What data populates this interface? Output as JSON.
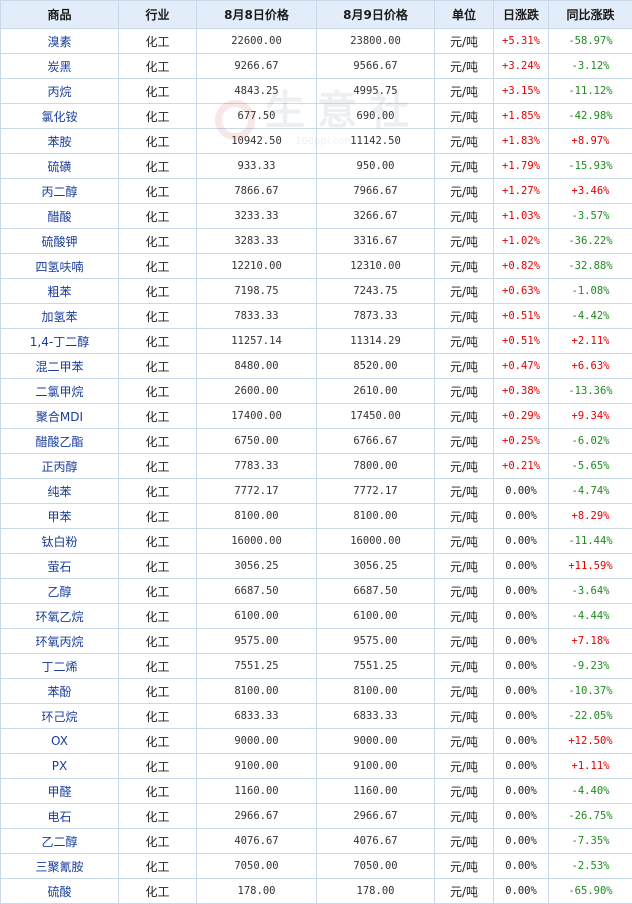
{
  "table": {
    "headers": [
      "商品",
      "行业",
      "8月8日价格",
      "8月9日价格",
      "单位",
      "日涨跌",
      "同比涨跌"
    ],
    "rows": [
      [
        "溴素",
        "化工",
        "22600.00",
        "23800.00",
        "元/吨",
        "+5.31%",
        "-58.97%"
      ],
      [
        "炭黑",
        "化工",
        "9266.67",
        "9566.67",
        "元/吨",
        "+3.24%",
        "-3.12%"
      ],
      [
        "丙烷",
        "化工",
        "4843.25",
        "4995.75",
        "元/吨",
        "+3.15%",
        "-11.12%"
      ],
      [
        "氯化铵",
        "化工",
        "677.50",
        "690.00",
        "元/吨",
        "+1.85%",
        "-42.98%"
      ],
      [
        "苯胺",
        "化工",
        "10942.50",
        "11142.50",
        "元/吨",
        "+1.83%",
        "+8.97%"
      ],
      [
        "硫磺",
        "化工",
        "933.33",
        "950.00",
        "元/吨",
        "+1.79%",
        "-15.93%"
      ],
      [
        "丙二醇",
        "化工",
        "7866.67",
        "7966.67",
        "元/吨",
        "+1.27%",
        "+3.46%"
      ],
      [
        "醋酸",
        "化工",
        "3233.33",
        "3266.67",
        "元/吨",
        "+1.03%",
        "-3.57%"
      ],
      [
        "硫酸钾",
        "化工",
        "3283.33",
        "3316.67",
        "元/吨",
        "+1.02%",
        "-36.22%"
      ],
      [
        "四氢呋喃",
        "化工",
        "12210.00",
        "12310.00",
        "元/吨",
        "+0.82%",
        "-32.88%"
      ],
      [
        "粗苯",
        "化工",
        "7198.75",
        "7243.75",
        "元/吨",
        "+0.63%",
        "-1.08%"
      ],
      [
        "加氢苯",
        "化工",
        "7833.33",
        "7873.33",
        "元/吨",
        "+0.51%",
        "-4.42%"
      ],
      [
        "1,4-丁二醇",
        "化工",
        "11257.14",
        "11314.29",
        "元/吨",
        "+0.51%",
        "+2.11%"
      ],
      [
        "混二甲苯",
        "化工",
        "8480.00",
        "8520.00",
        "元/吨",
        "+0.47%",
        "+6.63%"
      ],
      [
        "二氯甲烷",
        "化工",
        "2600.00",
        "2610.00",
        "元/吨",
        "+0.38%",
        "-13.36%"
      ],
      [
        "聚合MDI",
        "化工",
        "17400.00",
        "17450.00",
        "元/吨",
        "+0.29%",
        "+9.34%"
      ],
      [
        "醋酸乙酯",
        "化工",
        "6750.00",
        "6766.67",
        "元/吨",
        "+0.25%",
        "-6.02%"
      ],
      [
        "正丙醇",
        "化工",
        "7783.33",
        "7800.00",
        "元/吨",
        "+0.21%",
        "-5.65%"
      ],
      [
        "纯苯",
        "化工",
        "7772.17",
        "7772.17",
        "元/吨",
        "0.00%",
        "-4.74%"
      ],
      [
        "甲苯",
        "化工",
        "8100.00",
        "8100.00",
        "元/吨",
        "0.00%",
        "+8.29%"
      ],
      [
        "钛白粉",
        "化工",
        "16000.00",
        "16000.00",
        "元/吨",
        "0.00%",
        "-11.44%"
      ],
      [
        "萤石",
        "化工",
        "3056.25",
        "3056.25",
        "元/吨",
        "0.00%",
        "+11.59%"
      ],
      [
        "乙醇",
        "化工",
        "6687.50",
        "6687.50",
        "元/吨",
        "0.00%",
        "-3.64%"
      ],
      [
        "环氧乙烷",
        "化工",
        "6100.00",
        "6100.00",
        "元/吨",
        "0.00%",
        "-4.44%"
      ],
      [
        "环氧丙烷",
        "化工",
        "9575.00",
        "9575.00",
        "元/吨",
        "0.00%",
        "+7.18%"
      ],
      [
        "丁二烯",
        "化工",
        "7551.25",
        "7551.25",
        "元/吨",
        "0.00%",
        "-9.23%"
      ],
      [
        "苯酚",
        "化工",
        "8100.00",
        "8100.00",
        "元/吨",
        "0.00%",
        "-10.37%"
      ],
      [
        "环己烷",
        "化工",
        "6833.33",
        "6833.33",
        "元/吨",
        "0.00%",
        "-22.05%"
      ],
      [
        "OX",
        "化工",
        "9000.00",
        "9000.00",
        "元/吨",
        "0.00%",
        "+12.50%"
      ],
      [
        "PX",
        "化工",
        "9100.00",
        "9100.00",
        "元/吨",
        "0.00%",
        "+1.11%"
      ],
      [
        "甲醛",
        "化工",
        "1160.00",
        "1160.00",
        "元/吨",
        "0.00%",
        "-4.40%"
      ],
      [
        "电石",
        "化工",
        "2966.67",
        "2966.67",
        "元/吨",
        "0.00%",
        "-26.75%"
      ],
      [
        "乙二醇",
        "化工",
        "4076.67",
        "4076.67",
        "元/吨",
        "0.00%",
        "-7.35%"
      ],
      [
        "三聚氰胺",
        "化工",
        "7050.00",
        "7050.00",
        "元/吨",
        "0.00%",
        "-2.53%"
      ],
      [
        "硫酸",
        "化工",
        "178.00",
        "178.00",
        "元/吨",
        "0.00%",
        "-65.90%"
      ]
    ]
  },
  "watermark": {
    "text": "生意社",
    "sub": "100ppi.com"
  },
  "colors": {
    "up": "#e00000",
    "down": "#1d8a1d",
    "name_link": "#1a3d9c",
    "header_bg": "#e3edf9",
    "border": "#c9d9ec"
  }
}
